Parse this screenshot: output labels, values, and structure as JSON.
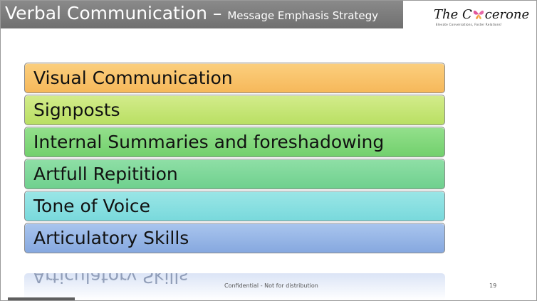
{
  "title": {
    "main": "Verbal Communication – ",
    "sub": "Message Emphasis Strategy"
  },
  "logo": {
    "text_left": "The C",
    "text_right": "cerone",
    "tagline": "Elevate Conversations, Foster Relations!"
  },
  "items": [
    {
      "label": "Visual Communication",
      "color": "#fbcf7e",
      "color2": "#f6b85a"
    },
    {
      "label": "Signposts",
      "color": "#d3ec8b",
      "color2": "#b9df63"
    },
    {
      "label": "Internal Summaries and foreshadowing",
      "color": "#94e08c",
      "color2": "#72d06d"
    },
    {
      "label": "Artfull Repitition",
      "color": "#8fdfa6",
      "color2": "#6fd08e"
    },
    {
      "label": "Tone of Voice",
      "color": "#9ae6e6",
      "color2": "#79d9dc"
    },
    {
      "label": "Articulatory Skills",
      "color": "#a9c5ee",
      "color2": "#86a8df"
    }
  ],
  "reflection_text": "Articulatory Skills",
  "footer": {
    "confidential": "Confidential - Not for distribution",
    "page_number": "19"
  }
}
